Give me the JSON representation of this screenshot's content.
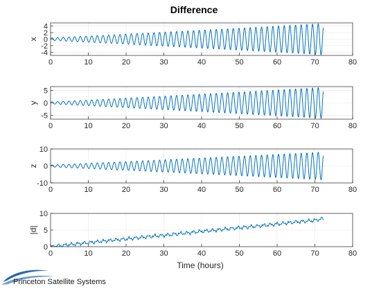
{
  "chart_data": {
    "type": "line",
    "title": "Difference",
    "xlabel": "Time (hours)",
    "x_range": [
      0,
      80
    ],
    "x_ticks": [
      0,
      10,
      20,
      30,
      40,
      50,
      60,
      70,
      80
    ],
    "grid": true,
    "line_color": "#0072BD",
    "panels": [
      {
        "ylabel": "x",
        "ylim": [
          -5,
          5
        ],
        "y_ticks": [
          -4,
          -2,
          0,
          2,
          4
        ],
        "series": [
          {
            "shape": "growing-oscillation",
            "period_hours": 1.5,
            "t_end": 72.2,
            "amplitude_start": 0.4,
            "amplitude_end": 4.8
          }
        ]
      },
      {
        "ylabel": "y",
        "ylim": [
          -6.5,
          6.5
        ],
        "y_ticks": [
          -5,
          0,
          5
        ],
        "series": [
          {
            "shape": "growing-oscillation",
            "period_hours": 1.5,
            "t_end": 72.2,
            "amplitude_start": 0.4,
            "amplitude_end": 6.2
          }
        ]
      },
      {
        "ylabel": "z",
        "ylim": [
          -10,
          10
        ],
        "y_ticks": [
          -10,
          0,
          10
        ],
        "series": [
          {
            "shape": "growing-oscillation",
            "period_hours": 1.5,
            "t_end": 72.2,
            "amplitude_start": 0.6,
            "amplitude_end": 8.2
          }
        ]
      },
      {
        "ylabel": "|d|",
        "ylim": [
          0,
          10
        ],
        "y_ticks": [
          0,
          5,
          10
        ],
        "series": [
          {
            "shape": "noisy-ramp",
            "t_end": 72.2,
            "points": [
              [
                0,
                0
              ],
              [
                5,
                0.6
              ],
              [
                10,
                1.2
              ],
              [
                15,
                1.8
              ],
              [
                20,
                2.3
              ],
              [
                25,
                2.9
              ],
              [
                30,
                3.4
              ],
              [
                35,
                4.0
              ],
              [
                40,
                4.6
              ],
              [
                45,
                5.1
              ],
              [
                50,
                5.7
              ],
              [
                55,
                6.2
              ],
              [
                60,
                6.8
              ],
              [
                65,
                7.4
              ],
              [
                70,
                7.9
              ],
              [
                72,
                8.4
              ]
            ]
          }
        ]
      }
    ]
  },
  "branding": {
    "company": "Princeton Satellite Systems"
  }
}
